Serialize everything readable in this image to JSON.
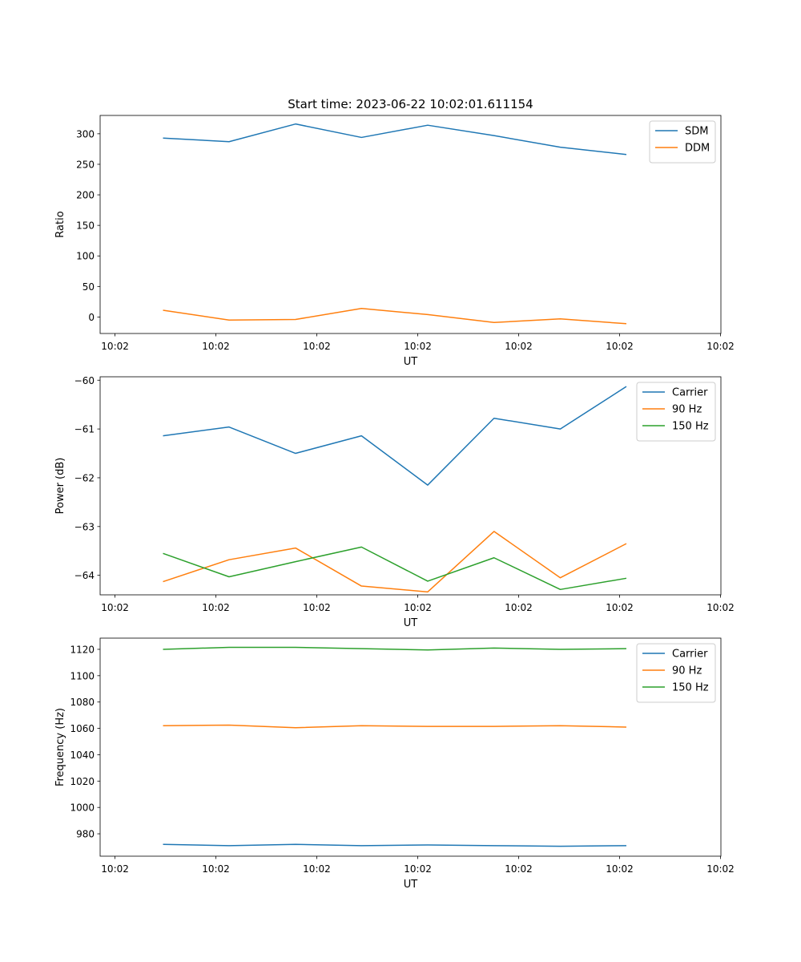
{
  "chart_data": [
    {
      "type": "line",
      "title": "Start time: 2023-06-22 10:02:01.611154",
      "xlabel": "UT",
      "ylabel": "Ratio",
      "x_tick_labels": [
        "10:02",
        "10:02",
        "10:02",
        "10:02",
        "10:02",
        "10:02",
        "10:02"
      ],
      "ylim": [
        -27,
        330
      ],
      "y_ticks": [
        0,
        50,
        100,
        150,
        200,
        250,
        300
      ],
      "legend_position": "upper right",
      "series": [
        {
          "name": "SDM",
          "color": "#1f77b4",
          "values": [
            293,
            287,
            316,
            294,
            314,
            297,
            278,
            266
          ]
        },
        {
          "name": "DDM",
          "color": "#ff7f0e",
          "values": [
            11,
            -5,
            -4,
            14,
            4,
            -9,
            -3,
            -11
          ]
        }
      ]
    },
    {
      "type": "line",
      "title": "",
      "xlabel": "UT",
      "ylabel": "Power (dB)",
      "x_tick_labels": [
        "10:02",
        "10:02",
        "10:02",
        "10:02",
        "10:02",
        "10:02",
        "10:02"
      ],
      "ylim": [
        -64.4,
        -59.93
      ],
      "y_ticks": [
        -64,
        -63,
        -62,
        -61,
        -60
      ],
      "y_tick_labels": [
        "−64",
        "−63",
        "−62",
        "−61",
        "−60"
      ],
      "legend_position": "upper right",
      "series": [
        {
          "name": "Carrier",
          "color": "#1f77b4",
          "values": [
            -61.14,
            -60.96,
            -61.5,
            -61.14,
            -62.15,
            -60.78,
            -61.0,
            -60.13
          ]
        },
        {
          "name": "90 Hz",
          "color": "#ff7f0e",
          "values": [
            -64.13,
            -63.68,
            -63.44,
            -64.22,
            -64.34,
            -63.1,
            -64.05,
            -63.35
          ]
        },
        {
          "name": "150 Hz",
          "color": "#2ca02c",
          "values": [
            -63.55,
            -64.03,
            -63.72,
            -63.42,
            -64.12,
            -63.64,
            -64.29,
            -64.06
          ]
        }
      ]
    },
    {
      "type": "line",
      "title": "",
      "xlabel": "UT",
      "ylabel": "Frequency (Hz)",
      "x_tick_labels": [
        "10:02",
        "10:02",
        "10:02",
        "10:02",
        "10:02",
        "10:02",
        "10:02"
      ],
      "ylim": [
        963,
        1128.5
      ],
      "y_ticks": [
        980,
        1000,
        1020,
        1040,
        1060,
        1080,
        1100,
        1120
      ],
      "legend_position": "upper right",
      "series": [
        {
          "name": "Carrier",
          "color": "#1f77b4",
          "values": [
            972,
            971,
            972,
            971,
            971.5,
            971,
            970.5,
            971
          ]
        },
        {
          "name": "90 Hz",
          "color": "#ff7f0e",
          "values": [
            1062,
            1062.5,
            1060.5,
            1062,
            1061.5,
            1061.5,
            1062,
            1061
          ]
        },
        {
          "name": "150 Hz",
          "color": "#2ca02c",
          "values": [
            1120,
            1121.5,
            1121.5,
            1120.5,
            1119.5,
            1121,
            1120,
            1120.5
          ]
        }
      ]
    }
  ]
}
